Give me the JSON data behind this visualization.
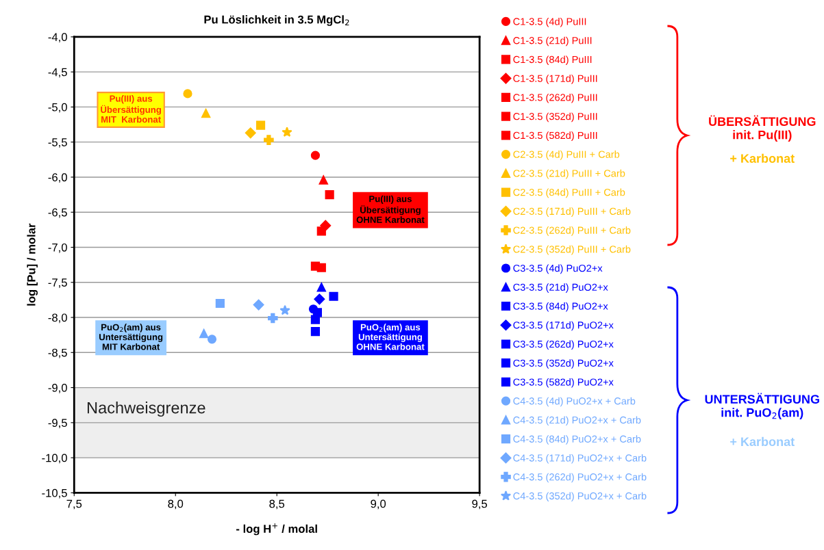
{
  "chart_data": {
    "type": "scatter",
    "title": "Pu Löslichkeit in 3.5 MgCl$_{2}$",
    "xlabel": "- log H$^{+}$ / molal",
    "ylabel": "log [Pu] / molar",
    "xlim": [
      7.5,
      9.5
    ],
    "ylim": [
      -10.5,
      -4.0
    ],
    "xticks": [
      {
        "value": 7.5,
        "label": "7,5"
      },
      {
        "value": 8.0,
        "label": "8,0"
      },
      {
        "value": 8.5,
        "label": "8,5"
      },
      {
        "value": 9.0,
        "label": "9,0"
      },
      {
        "value": 9.5,
        "label": "9,5"
      }
    ],
    "yticks": [
      {
        "value": -10.5,
        "label": "-10,5"
      },
      {
        "value": -10.0,
        "label": "-10,0"
      },
      {
        "value": -9.5,
        "label": "-9,5"
      },
      {
        "value": -9.0,
        "label": "-9,0"
      },
      {
        "value": -8.5,
        "label": "-8,5"
      },
      {
        "value": -8.0,
        "label": "-8,0"
      },
      {
        "value": -7.5,
        "label": "-7,5"
      },
      {
        "value": -7.0,
        "label": "-7,0"
      },
      {
        "value": -6.5,
        "label": "-6,5"
      },
      {
        "value": -6.0,
        "label": "-6,0"
      },
      {
        "value": -5.5,
        "label": "-5,5"
      },
      {
        "value": -5.0,
        "label": "-5,0"
      },
      {
        "value": -4.5,
        "label": "-4,5"
      },
      {
        "value": -4.0,
        "label": "-4,0"
      }
    ],
    "grid": "y",
    "legend": "right",
    "bands": [
      {
        "axis": "y",
        "from": -10.0,
        "to": -9.0,
        "label": "Nachweisgrenze",
        "color": "#eeeeee"
      }
    ],
    "annotations": [
      "Pu(III) aus\nÜbersättigung\nMIT  Karbonat",
      "Pu(III) aus\nÜbersättigung\nOHNE Karbonat",
      "PuO$_{2}$(am) aus\nUntersättigung\nMIT Karbonat",
      "PuO$_{2}$(am) aus\nUntersättigung\nOHNE Karbonat",
      "ÜBERSÄTTIGUNG\ninit. Pu(III)",
      "+ Karbonat",
      "UNTERSÄTTIGUNG\ninit. PuO$_{2}$(am)",
      "+ Karbonat"
    ],
    "series": [
      {
        "name": "C1-3.5 (4d) PuIII",
        "color": "#ff0000",
        "marker": "circle",
        "x": [
          8.69
        ],
        "values": [
          -5.69
        ]
      },
      {
        "name": "C1-3.5 (21d) PuIII",
        "color": "#ff0000",
        "marker": "triangle",
        "x": [
          8.73
        ],
        "values": [
          -6.04
        ]
      },
      {
        "name": "C1-3.5 (84d) PuIII",
        "color": "#ff0000",
        "marker": "square",
        "x": [
          8.76
        ],
        "values": [
          -6.25
        ]
      },
      {
        "name": "C1-3.5 (171d) PuIII",
        "color": "#ff0000",
        "marker": "diamond",
        "x": [
          8.74
        ],
        "values": [
          -6.69
        ]
      },
      {
        "name": "C1-3.5 (262d) PuIII",
        "color": "#ff0000",
        "marker": "square",
        "x": [
          8.72
        ],
        "values": [
          -6.77
        ]
      },
      {
        "name": "C1-3.5 (352d) PuIII",
        "color": "#ff0000",
        "marker": "square",
        "x": [
          8.69
        ],
        "values": [
          -7.27
        ]
      },
      {
        "name": "C1-3.5 (582d) PuIII",
        "color": "#ff0000",
        "marker": "square",
        "x": [
          8.72
        ],
        "values": [
          -7.29
        ]
      },
      {
        "name": "C2-3.5 (4d) PuIII + Carb",
        "color": "#ffc000",
        "marker": "circle",
        "x": [
          8.06
        ],
        "values": [
          -4.81
        ]
      },
      {
        "name": "C2-3.5 (21d) PuIII + Carb",
        "color": "#ffc000",
        "marker": "triangle",
        "x": [
          8.15
        ],
        "values": [
          -5.09
        ]
      },
      {
        "name": "C2-3.5 (84d) PuIII + Carb",
        "color": "#ffc000",
        "marker": "square",
        "x": [
          8.42
        ],
        "values": [
          -5.26
        ]
      },
      {
        "name": "C2-3.5 (171d) PuIII + Carb",
        "color": "#ffc000",
        "marker": "diamond",
        "x": [
          8.37
        ],
        "values": [
          -5.37
        ]
      },
      {
        "name": "C2-3.5 (262d) PuIII + Carb",
        "color": "#ffc000",
        "marker": "cross",
        "x": [
          8.46
        ],
        "values": [
          -5.47
        ]
      },
      {
        "name": "C2-3.5 (352d) PuIII + Carb",
        "color": "#ffc000",
        "marker": "star",
        "x": [
          8.55
        ],
        "values": [
          -5.36
        ]
      },
      {
        "name": "C3-3.5 (4d) PuO2+x",
        "color": "#0000ff",
        "marker": "circle",
        "x": [
          8.68
        ],
        "values": [
          -7.88
        ]
      },
      {
        "name": "C3-3.5 (21d) PuO2+x",
        "color": "#0000ff",
        "marker": "triangle",
        "x": [
          8.72
        ],
        "values": [
          -7.57
        ]
      },
      {
        "name": "C3-3.5 (84d) PuO2+x",
        "color": "#0000ff",
        "marker": "square",
        "x": [
          8.78
        ],
        "values": [
          -7.7
        ]
      },
      {
        "name": "C3-3.5 (171d) PuO2+x",
        "color": "#0000ff",
        "marker": "diamond",
        "x": [
          8.71
        ],
        "values": [
          -7.74
        ]
      },
      {
        "name": "C3-3.5 (262d) PuO2+x",
        "color": "#0000ff",
        "marker": "square",
        "x": [
          8.7
        ],
        "values": [
          -7.93
        ]
      },
      {
        "name": "C3-3.5 (352d) PuO2+x",
        "color": "#0000ff",
        "marker": "square",
        "x": [
          8.69
        ],
        "values": [
          -8.03
        ]
      },
      {
        "name": "C3-3.5 (582d) PuO2+x",
        "color": "#0000ff",
        "marker": "square",
        "x": [
          8.69
        ],
        "values": [
          -8.2
        ]
      },
      {
        "name": "C4-3.5 (4d) PuO2+x + Carb",
        "color": "#6fa8ff",
        "marker": "circle",
        "x": [
          8.18
        ],
        "values": [
          -8.31
        ]
      },
      {
        "name": "C4-3.5 (21d) PuO2+x + Carb",
        "color": "#6fa8ff",
        "marker": "triangle",
        "x": [
          8.14
        ],
        "values": [
          -8.23
        ]
      },
      {
        "name": "C4-3.5 (84d) PuO2+x + Carb",
        "color": "#6fa8ff",
        "marker": "square",
        "x": [
          8.22
        ],
        "values": [
          -7.8
        ]
      },
      {
        "name": "C4-3.5 (171d) PuO2+x + Carb",
        "color": "#6fa8ff",
        "marker": "diamond",
        "x": [
          8.41
        ],
        "values": [
          -7.82
        ]
      },
      {
        "name": "C4-3.5 (262d) PuO2+x + Carb",
        "color": "#6fa8ff",
        "marker": "cross",
        "x": [
          8.48
        ],
        "values": [
          -8.01
        ]
      },
      {
        "name": "C4-3.5 (352d) PuO2+x + Carb",
        "color": "#6fa8ff",
        "marker": "star",
        "x": [
          8.54
        ],
        "values": [
          -7.9
        ]
      }
    ]
  }
}
